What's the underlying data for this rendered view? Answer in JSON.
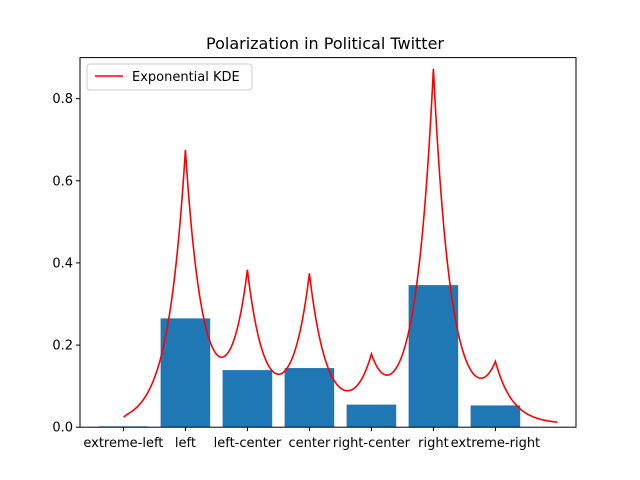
{
  "chart_data": {
    "type": "bar",
    "title": "Polarization in Political Twitter",
    "xlabel": "",
    "ylabel": "",
    "categories": [
      "extreme-left",
      "left",
      "left-center",
      "center",
      "right-center",
      "right",
      "extreme-right"
    ],
    "values": [
      0.002,
      0.265,
      0.139,
      0.144,
      0.055,
      0.346,
      0.053
    ],
    "bar_color": "#1f77b4",
    "ylim": [
      0,
      0.9
    ],
    "yticks": [
      0.0,
      0.2,
      0.4,
      0.6,
      0.8
    ],
    "ytick_labels": [
      "0.0",
      "0.2",
      "0.4",
      "0.6",
      "0.8"
    ],
    "xlim": [
      -0.7,
      7.3
    ],
    "grid": false,
    "legend": {
      "position": "top-left",
      "entries": [
        "Exponential KDE"
      ]
    },
    "kde": {
      "name": "Exponential KDE",
      "color": "#ff0000",
      "baseline": 0.008,
      "x_range": [
        0,
        7
      ],
      "peaks": [
        {
          "x": 1,
          "height": 0.657,
          "width": 0.28
        },
        {
          "x": 2,
          "height": 0.347,
          "width": 0.28
        },
        {
          "x": 3,
          "height": 0.352,
          "width": 0.28
        },
        {
          "x": 4,
          "height": 0.136,
          "width": 0.28
        },
        {
          "x": 5,
          "height": 0.857,
          "width": 0.28
        },
        {
          "x": 6,
          "height": 0.128,
          "width": 0.28
        }
      ]
    }
  }
}
